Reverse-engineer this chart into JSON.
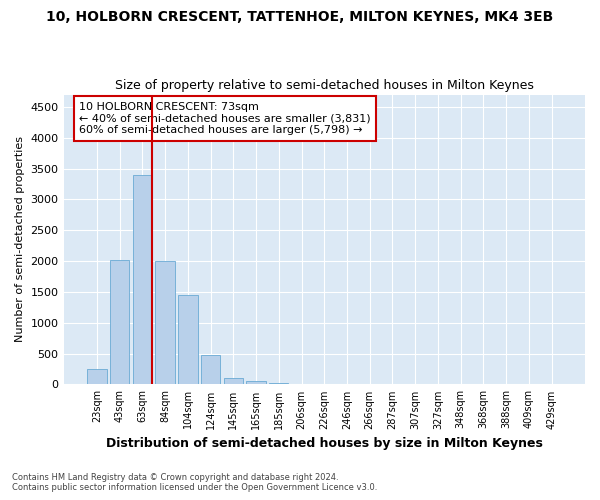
{
  "title": "10, HOLBORN CRESCENT, TATTENHOE, MILTON KEYNES, MK4 3EB",
  "subtitle": "Size of property relative to semi-detached houses in Milton Keynes",
  "xlabel": "Distribution of semi-detached houses by size in Milton Keynes",
  "ylabel": "Number of semi-detached properties",
  "footnote1": "Contains HM Land Registry data © Crown copyright and database right 2024.",
  "footnote2": "Contains public sector information licensed under the Open Government Licence v3.0.",
  "categories": [
    "23sqm",
    "43sqm",
    "63sqm",
    "84sqm",
    "104sqm",
    "124sqm",
    "145sqm",
    "165sqm",
    "185sqm",
    "206sqm",
    "226sqm",
    "246sqm",
    "266sqm",
    "287sqm",
    "307sqm",
    "327sqm",
    "348sqm",
    "368sqm",
    "388sqm",
    "409sqm",
    "429sqm"
  ],
  "values": [
    250,
    2020,
    3390,
    2000,
    1450,
    480,
    100,
    55,
    30,
    0,
    0,
    0,
    0,
    0,
    0,
    0,
    0,
    0,
    0,
    0,
    0
  ],
  "bar_color": "#b8d0ea",
  "bar_edge_color": "#6aaad4",
  "vline_color": "#cc0000",
  "annotation_title": "10 HOLBORN CRESCENT: 73sqm",
  "annotation_line1": "← 40% of semi-detached houses are smaller (3,831)",
  "annotation_line2": "60% of semi-detached houses are larger (5,798) →",
  "annotation_box_color": "#ffffff",
  "annotation_box_edge": "#cc0000",
  "ylim": [
    0,
    4700
  ],
  "yticks": [
    0,
    500,
    1000,
    1500,
    2000,
    2500,
    3000,
    3500,
    4000,
    4500
  ],
  "plot_bg_color": "#dce9f5",
  "title_fontsize": 10,
  "subtitle_fontsize": 9,
  "xlabel_fontsize": 9,
  "ylabel_fontsize": 8
}
